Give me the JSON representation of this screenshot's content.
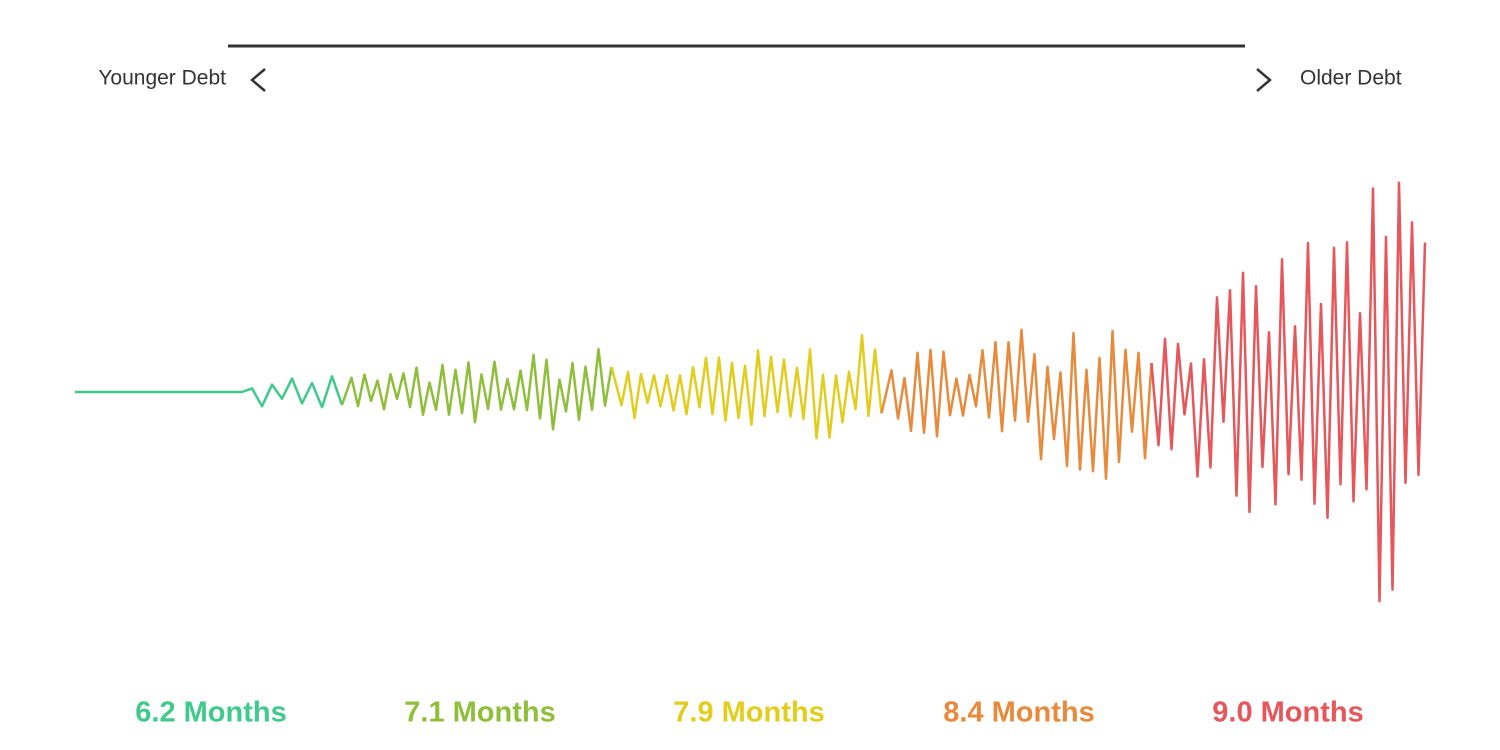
{
  "header": {
    "left_label": "Younger Debt",
    "right_label": "Older Debt"
  },
  "segments": [
    "6.2 Months",
    "7.1 Months",
    "7.9 Months",
    "8.4 Months",
    "9.0 Months"
  ]
}
